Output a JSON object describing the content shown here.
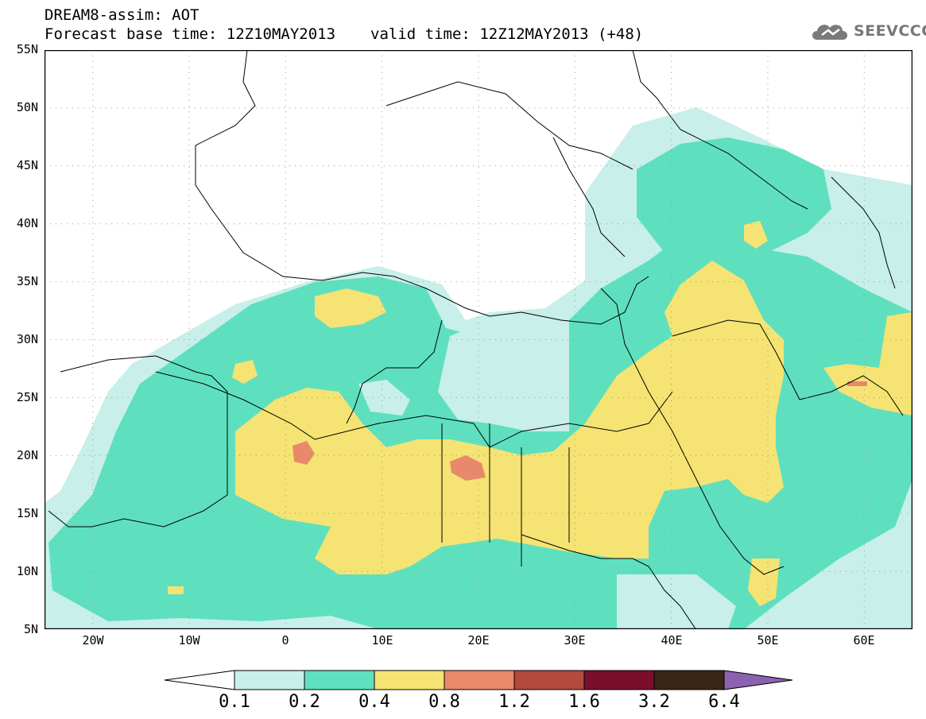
{
  "header": {
    "line1": "DREAM8-assim: AOT",
    "base_time_label": "Forecast base time: 12Z10MAY2013",
    "valid_time_label": "valid time: 12Z12MAY2013 (+48)"
  },
  "logo": {
    "icon": "cloud-icon",
    "text": "SEEVCCC"
  },
  "map": {
    "lat_labels": [
      "55N",
      "50N",
      "45N",
      "40N",
      "35N",
      "30N",
      "25N",
      "20N",
      "15N",
      "10N",
      "5N"
    ],
    "lon_labels": [
      "20W",
      "10W",
      "0",
      "10E",
      "20E",
      "30E",
      "40E",
      "50E",
      "60E"
    ],
    "lat_range": [
      5,
      55
    ],
    "lon_range": [
      -25,
      65
    ],
    "grid": "dotted"
  },
  "colorbar": {
    "labels": [
      "0.1",
      "0.2",
      "0.4",
      "0.8",
      "1.2",
      "1.6",
      "3.2",
      "6.4"
    ],
    "colors": [
      "#ffffff",
      "#c8efe9",
      "#5ee0bf",
      "#f5e373",
      "#e8896b",
      "#b44a3e",
      "#7a0f2c",
      "#3a2616",
      "#8c62b0"
    ]
  }
}
